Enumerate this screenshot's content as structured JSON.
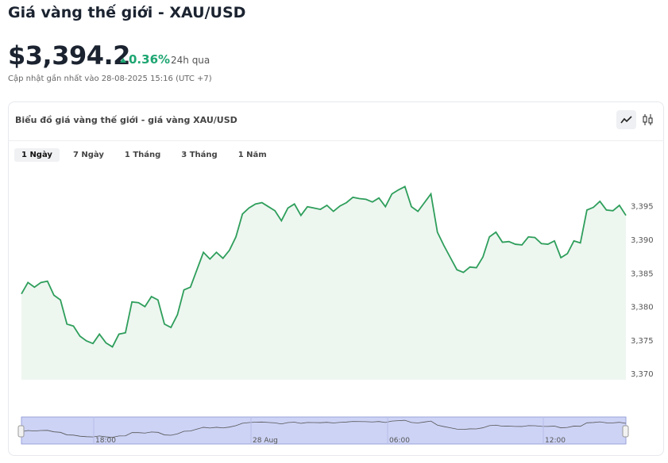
{
  "header": {
    "title": "Giá vàng thế giới - XAU/USD",
    "price": "$3,394.2",
    "change": "0.36%",
    "change_period": "24h qua",
    "updated": "Cập nhật gần nhất vào 28-08-2025 15:16 (UTC +7)"
  },
  "card": {
    "title": "Biểu đồ giá vàng thế giới - giá vàng XAU/USD",
    "tabs": [
      "1 Ngày",
      "7 Ngày",
      "1 Tháng",
      "3 Tháng",
      "1 Năm"
    ]
  },
  "chart_data": {
    "type": "line",
    "color": "#2e9e5b",
    "values": [
      3382.0,
      3383.7,
      3383.0,
      3383.7,
      3383.9,
      3381.8,
      3381.1,
      3377.5,
      3377.2,
      3375.7,
      3375.0,
      3374.6,
      3376.0,
      3374.7,
      3374.1,
      3376.0,
      3376.2,
      3380.8,
      3380.7,
      3380.1,
      3381.6,
      3381.1,
      3377.5,
      3377.0,
      3378.9,
      3382.6,
      3383.0,
      3385.6,
      3388.2,
      3387.2,
      3388.2,
      3387.3,
      3388.5,
      3390.5,
      3393.9,
      3394.8,
      3395.4,
      3395.6,
      3395.0,
      3394.4,
      3392.9,
      3394.8,
      3395.4,
      3393.7,
      3395.0,
      3394.8,
      3394.6,
      3395.2,
      3394.3,
      3395.1,
      3395.6,
      3396.4,
      3396.2,
      3396.1,
      3395.7,
      3396.3,
      3395.0,
      3396.9,
      3397.5,
      3398.0,
      3395.0,
      3394.3,
      3395.6,
      3396.9,
      3391.2,
      3389.2,
      3387.4,
      3385.6,
      3385.2,
      3386.0,
      3385.9,
      3387.5,
      3390.5,
      3391.2,
      3389.7,
      3389.8,
      3389.4,
      3389.3,
      3390.5,
      3390.4,
      3389.5,
      3389.4,
      3389.9,
      3387.4,
      3388.0,
      3389.9,
      3389.6,
      3394.5,
      3394.9,
      3395.8,
      3394.5,
      3394.4,
      3395.2,
      3393.7
    ],
    "ylim": [
      3369.2,
      3400.4
    ],
    "yticks": [
      {
        "value": 3370,
        "label": "3,370"
      },
      {
        "value": 3375,
        "label": "3,375"
      },
      {
        "value": 3380,
        "label": "3,380"
      },
      {
        "value": 3385,
        "label": "3,385"
      },
      {
        "value": 3390,
        "label": "3,390"
      },
      {
        "value": 3395,
        "label": "3,395"
      }
    ]
  },
  "navigator": {
    "labels": [
      "18:00",
      "28 Aug",
      "06:00",
      "12:00"
    ]
  }
}
